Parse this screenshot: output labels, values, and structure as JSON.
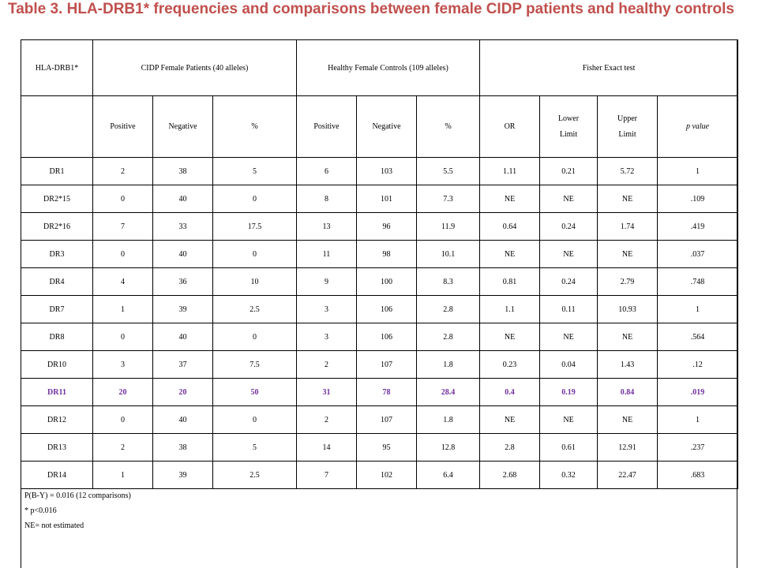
{
  "title": "Table 3. HLA-DRB1* frequencies and comparisons between female CIDP patients and healthy controls",
  "header": {
    "allele": "HLA-DRB1*",
    "cidp_group": "CIDP Female Patients (40 alleles)",
    "control_group": "Healthy Female Controls (109 alleles)",
    "fisher": "Fisher Exact test"
  },
  "subheader": {
    "positive": "Positive",
    "negative": "Negative",
    "percent": "%",
    "or": "OR",
    "lower_1": "Lower",
    "lower_2": "Limit",
    "upper_1": "Upper",
    "upper_2": "Limit",
    "pvalue": "p value"
  },
  "rows": [
    [
      "DR1",
      "2",
      "38",
      "5",
      "6",
      "103",
      "5.5",
      "1.11",
      "0.21",
      "5.72",
      "1"
    ],
    [
      "DR2*15",
      "0",
      "40",
      "0",
      "8",
      "101",
      "7.3",
      "NE",
      "NE",
      "NE",
      ".109"
    ],
    [
      "DR2*16",
      "7",
      "33",
      "17.5",
      "13",
      "96",
      "11.9",
      "0.64",
      "0.24",
      "1.74",
      ".419"
    ],
    [
      "DR3",
      "0",
      "40",
      "0",
      "11",
      "98",
      "10.1",
      "NE",
      "NE",
      "NE",
      ".037"
    ],
    [
      "DR4",
      "4",
      "36",
      "10",
      "9",
      "100",
      "8.3",
      "0.81",
      "0.24",
      "2.79",
      ".748"
    ],
    [
      "DR7",
      "1",
      "39",
      "2.5",
      "3",
      "106",
      "2.8",
      "1.1",
      "0.11",
      "10.93",
      "1"
    ],
    [
      "DR8",
      "0",
      "40",
      "0",
      "3",
      "106",
      "2.8",
      "NE",
      "NE",
      "NE",
      ".564"
    ],
    [
      "DR10",
      "3",
      "37",
      "7.5",
      "2",
      "107",
      "1.8",
      "0.23",
      "0.04",
      "1.43",
      ".12"
    ],
    [
      "DR11",
      "20",
      "20",
      "50",
      "31",
      "78",
      "28.4",
      "0.4",
      "0.19",
      "0.84",
      ".019"
    ],
    [
      "DR12",
      "0",
      "40",
      "0",
      "2",
      "107",
      "1.8",
      "NE",
      "NE",
      "NE",
      "1"
    ],
    [
      "DR13",
      "2",
      "38",
      "5",
      "14",
      "95",
      "12.8",
      "2.8",
      "0.61",
      "12.91",
      ".237"
    ],
    [
      "DR14",
      "1",
      "39",
      "2.5",
      "7",
      "102",
      "6.4",
      "2.68",
      "0.32",
      "22.47",
      ".683"
    ]
  ],
  "highlight_color": "#7030a0",
  "title_color": "#c0504d",
  "notes": [
    "P(B-Y) = 0.016 (12 comparisons)",
    "* p<0.016",
    "NE= not estimated"
  ]
}
